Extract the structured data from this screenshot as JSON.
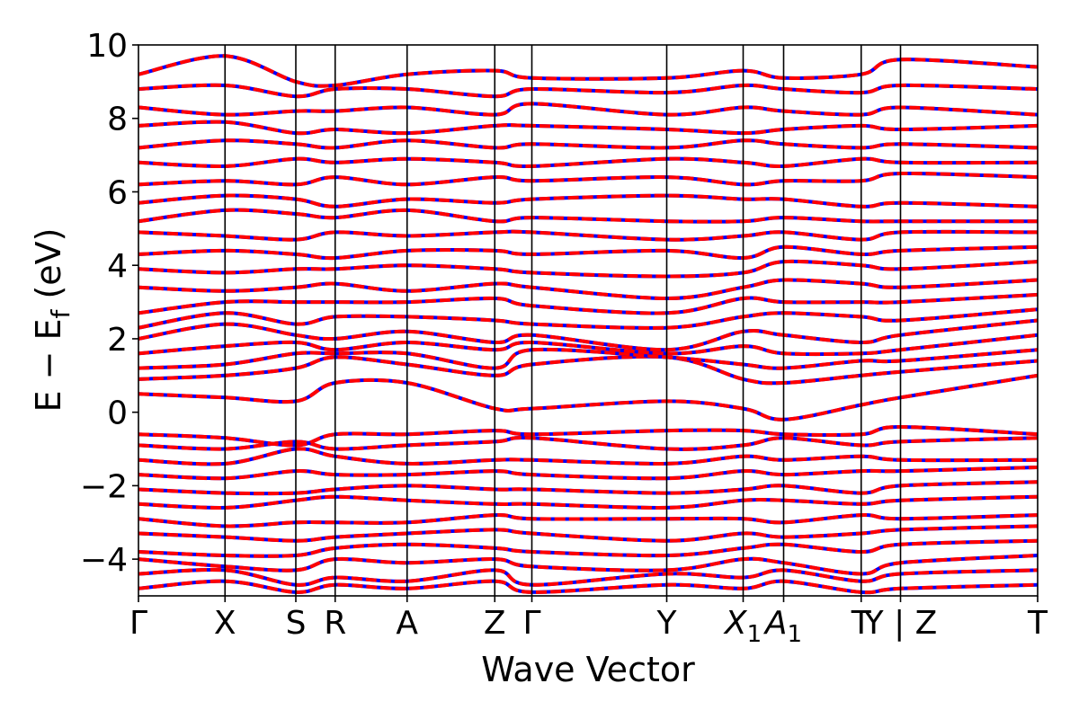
{
  "chart_data": {
    "type": "line",
    "title": "",
    "xlabel": "Wave Vector",
    "ylabel": "E − E",
    "ylabel_subscript": "f",
    "ylabel_unit": " (eV)",
    "ylim": [
      -5,
      10
    ],
    "yticks": [
      {
        "value": -4,
        "label": "−4"
      },
      {
        "value": -2,
        "label": "−2"
      },
      {
        "value": 0,
        "label": "0"
      },
      {
        "value": 2,
        "label": "2"
      },
      {
        "value": 4,
        "label": "4"
      },
      {
        "value": 6,
        "label": "6"
      },
      {
        "value": 8,
        "label": "8"
      },
      {
        "value": 10,
        "label": "10"
      }
    ],
    "xlim": [
      0,
      8.0
    ],
    "kpoints": [
      {
        "x": 0.0,
        "label": "Γ",
        "sub": ""
      },
      {
        "x": 0.77,
        "label": "X",
        "sub": ""
      },
      {
        "x": 1.4,
        "label": "S",
        "sub": ""
      },
      {
        "x": 1.75,
        "label": "R",
        "sub": ""
      },
      {
        "x": 2.39,
        "label": "A",
        "sub": ""
      },
      {
        "x": 3.17,
        "label": "Z",
        "sub": ""
      },
      {
        "x": 3.5,
        "label": "Γ",
        "sub": ""
      },
      {
        "x": 4.7,
        "label": "Y",
        "sub": ""
      },
      {
        "x": 5.38,
        "label": "X",
        "sub": "1"
      },
      {
        "x": 5.74,
        "label": "A",
        "sub": "1"
      },
      {
        "x": 6.43,
        "label": "T",
        "sub": ""
      },
      {
        "x": 6.78,
        "label": "Y | Z",
        "sub": ""
      },
      {
        "x": 8.0,
        "label": "T",
        "sub": ""
      }
    ],
    "grid": false,
    "legend": "none",
    "colors": {
      "series_a": "#0000ff",
      "series_b": "#ff0000",
      "divider": "#000000"
    },
    "line_styles": {
      "series_a": "solid",
      "series_b": "dashed"
    },
    "series": [
      {
        "values": [
          [
            -4.8,
            -4.6,
            -4.9,
            -4.7,
            -4.8,
            -4.6,
            -4.9,
            -4.7,
            -4.8,
            -4.6,
            -4.9,
            -4.8,
            -4.7
          ],
          [
            -4.4,
            -4.3,
            -4.7,
            -4.5,
            -4.6,
            -4.3,
            -4.7,
            -4.4,
            -4.5,
            -4.3,
            -4.6,
            -4.4,
            -4.3
          ],
          [
            -4.0,
            -4.2,
            -4.3,
            -4.0,
            -4.1,
            -4.0,
            -4.2,
            -4.3,
            -4.0,
            -4.1,
            -4.4,
            -4.1,
            -3.9
          ],
          [
            -3.8,
            -3.9,
            -3.9,
            -3.7,
            -3.6,
            -3.7,
            -3.8,
            -3.9,
            -3.7,
            -3.6,
            -3.8,
            -3.6,
            -3.5
          ],
          [
            -3.3,
            -3.4,
            -3.5,
            -3.4,
            -3.3,
            -3.2,
            -3.3,
            -3.5,
            -3.3,
            -3.4,
            -3.3,
            -3.2,
            -3.1
          ],
          [
            -2.9,
            -3.1,
            -3.0,
            -3.0,
            -3.0,
            -2.8,
            -2.9,
            -2.9,
            -2.9,
            -3.0,
            -2.8,
            -2.9,
            -2.8
          ],
          [
            -2.5,
            -2.6,
            -2.4,
            -2.3,
            -2.4,
            -2.5,
            -2.5,
            -2.6,
            -2.4,
            -2.4,
            -2.5,
            -2.4,
            -2.3
          ],
          [
            -2.1,
            -2.2,
            -2.2,
            -2.1,
            -2.0,
            -2.1,
            -2.1,
            -2.2,
            -2.1,
            -2.0,
            -2.2,
            -2.0,
            -1.9
          ],
          [
            -1.7,
            -1.8,
            -1.6,
            -1.7,
            -1.7,
            -1.6,
            -1.7,
            -1.8,
            -1.6,
            -1.7,
            -1.6,
            -1.6,
            -1.5
          ],
          [
            -1.3,
            -1.4,
            -1.0,
            -1.2,
            -1.4,
            -1.3,
            -1.3,
            -1.4,
            -1.2,
            -1.3,
            -1.2,
            -1.3,
            -1.3
          ],
          [
            -0.9,
            -1.0,
            -0.8,
            -1.0,
            -0.9,
            -0.8,
            -0.7,
            -1.0,
            -0.9,
            -0.7,
            -0.9,
            -0.8,
            -0.7
          ],
          [
            -0.6,
            -0.7,
            -0.9,
            -0.6,
            -0.6,
            -0.5,
            -0.6,
            -0.5,
            -0.5,
            -0.6,
            -0.6,
            -0.4,
            -0.6
          ],
          [
            0.5,
            0.4,
            0.3,
            0.8,
            0.8,
            0.1,
            0.1,
            0.3,
            0.1,
            -0.2,
            0.2,
            0.4,
            1.0
          ],
          [
            0.9,
            1.0,
            1.2,
            1.5,
            1.3,
            1.0,
            1.3,
            1.5,
            0.9,
            0.8,
            1.0,
            1.1,
            1.4
          ],
          [
            1.2,
            1.3,
            1.6,
            1.6,
            1.6,
            1.2,
            1.7,
            1.5,
            1.3,
            1.2,
            1.4,
            1.4,
            1.7
          ],
          [
            1.6,
            1.8,
            1.9,
            1.7,
            1.9,
            1.7,
            1.9,
            1.6,
            1.8,
            1.6,
            1.6,
            1.7,
            2.1
          ],
          [
            2.0,
            2.4,
            2.1,
            2.0,
            2.2,
            1.9,
            2.1,
            1.7,
            2.2,
            2.1,
            1.9,
            2.1,
            2.5
          ],
          [
            2.3,
            2.7,
            2.4,
            2.6,
            2.6,
            2.5,
            2.4,
            2.3,
            2.6,
            2.7,
            2.6,
            2.5,
            2.8
          ],
          [
            2.7,
            3.0,
            3.0,
            3.0,
            3.0,
            3.1,
            2.9,
            2.7,
            3.1,
            3.0,
            3.0,
            3.0,
            3.2
          ],
          [
            3.4,
            3.3,
            3.4,
            3.5,
            3.3,
            3.5,
            3.4,
            3.1,
            3.4,
            3.6,
            3.5,
            3.4,
            3.6
          ],
          [
            3.9,
            3.8,
            3.9,
            3.9,
            4.0,
            3.9,
            3.8,
            3.7,
            3.8,
            4.1,
            4.0,
            3.9,
            4.1
          ],
          [
            4.3,
            4.4,
            4.3,
            4.2,
            4.4,
            4.4,
            4.3,
            4.4,
            4.2,
            4.5,
            4.3,
            4.4,
            4.5
          ],
          [
            4.9,
            4.8,
            4.7,
            4.9,
            4.8,
            4.9,
            4.9,
            4.7,
            4.8,
            4.9,
            4.7,
            4.9,
            4.9
          ],
          [
            5.2,
            5.5,
            5.4,
            5.3,
            5.5,
            5.2,
            5.3,
            5.2,
            5.2,
            5.3,
            5.2,
            5.2,
            5.2
          ],
          [
            5.7,
            5.9,
            5.8,
            5.6,
            5.8,
            5.7,
            5.8,
            5.9,
            5.8,
            5.8,
            5.6,
            5.7,
            5.6
          ],
          [
            6.2,
            6.3,
            6.2,
            6.4,
            6.2,
            6.4,
            6.3,
            6.4,
            6.2,
            6.3,
            6.3,
            6.5,
            6.4
          ],
          [
            6.8,
            6.7,
            6.9,
            6.8,
            6.9,
            6.8,
            6.7,
            6.9,
            6.8,
            6.7,
            6.9,
            6.8,
            6.8
          ],
          [
            7.2,
            7.4,
            7.3,
            7.2,
            7.4,
            7.2,
            7.3,
            7.2,
            7.4,
            7.3,
            7.2,
            7.3,
            7.2
          ],
          [
            7.8,
            7.9,
            7.6,
            7.7,
            7.6,
            7.8,
            7.8,
            7.7,
            7.6,
            7.7,
            7.8,
            7.7,
            7.8
          ],
          [
            8.3,
            8.1,
            8.2,
            8.2,
            8.3,
            8.1,
            8.4,
            8.1,
            8.3,
            8.2,
            8.1,
            8.3,
            8.1
          ],
          [
            8.8,
            8.9,
            8.6,
            8.8,
            8.8,
            8.6,
            8.8,
            8.7,
            8.9,
            8.8,
            8.7,
            8.9,
            8.8
          ],
          [
            9.2,
            9.7,
            9.0,
            8.9,
            9.2,
            9.3,
            9.1,
            9.1,
            9.3,
            9.1,
            9.2,
            9.6,
            9.4
          ]
        ]
      },
      {
        "values": []
      }
    ]
  }
}
